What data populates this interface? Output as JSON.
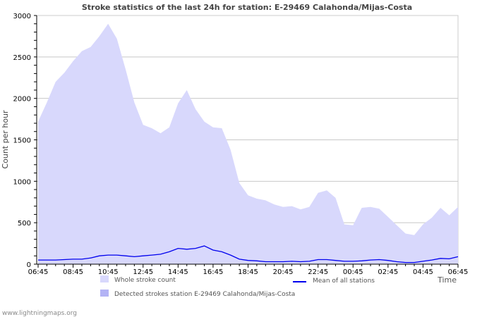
{
  "chart_data": {
    "type": "area",
    "title": "Stroke statistics of the last 24h for station: E-29469 Calahonda/Mijas-Costa",
    "xlabel": "Time",
    "ylabel": "Count per hour",
    "ylim": [
      0,
      3000
    ],
    "yticks": [
      "0",
      "500",
      "1000",
      "1500",
      "2000",
      "2500",
      "3000"
    ],
    "xticks": [
      "06:45",
      "08:45",
      "10:45",
      "12:45",
      "14:45",
      "16:45",
      "18:45",
      "20:45",
      "22:45",
      "00:45",
      "02:45",
      "04:45",
      "06:45"
    ],
    "grid": true,
    "x_step_minutes": 30,
    "series": [
      {
        "name": "Whole stroke count",
        "color": "#d8d8fc",
        "kind": "area",
        "values": [
          1720,
          1950,
          2200,
          2310,
          2450,
          2570,
          2620,
          2750,
          2900,
          2720,
          2350,
          1950,
          1680,
          1640,
          1580,
          1650,
          1940,
          2100,
          1870,
          1720,
          1650,
          1640,
          1380,
          980,
          830,
          790,
          770,
          720,
          690,
          700,
          660,
          690,
          860,
          890,
          800,
          480,
          470,
          680,
          690,
          670,
          570,
          470,
          370,
          350,
          480,
          560,
          680,
          590,
          690
        ]
      },
      {
        "name": "Detected strokes station E-29469 Calahonda/Mijas-Costa",
        "color": "#b3b3f5",
        "kind": "area",
        "values": []
      },
      {
        "name": "Mean of all stations",
        "color": "#0000ee",
        "kind": "line",
        "values": [
          50,
          50,
          50,
          55,
          60,
          60,
          75,
          100,
          110,
          110,
          100,
          90,
          100,
          110,
          120,
          150,
          190,
          180,
          190,
          220,
          170,
          150,
          110,
          60,
          45,
          40,
          30,
          30,
          30,
          35,
          30,
          35,
          55,
          55,
          45,
          35,
          35,
          40,
          50,
          55,
          45,
          30,
          20,
          20,
          35,
          50,
          70,
          65,
          90
        ]
      }
    ],
    "legend": {
      "placement": "bottom"
    }
  },
  "footer": {
    "credit": "www.lightningmaps.org"
  }
}
